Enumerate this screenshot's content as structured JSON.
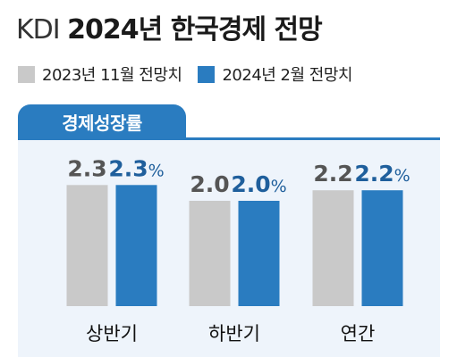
{
  "header": {
    "title_prefix": "KDI",
    "title_main": "2024년 한국경제 전망"
  },
  "legend": {
    "items": [
      {
        "label": "2023년 11월 전망치",
        "color": "#c9c9c9"
      },
      {
        "label": "2024년 2월 전망치",
        "color": "#2a7cc0"
      }
    ]
  },
  "tab_label": "경제성장률",
  "chart_data": {
    "type": "bar",
    "categories": [
      "상반기",
      "하반기",
      "연간"
    ],
    "series": [
      {
        "name": "2023년 11월 전망치",
        "values": [
          2.3,
          2.0,
          2.2
        ],
        "color": "#c9c9c9",
        "label_color": "#555555"
      },
      {
        "name": "2024년 2월 전망치",
        "values": [
          2.3,
          2.0,
          2.2
        ],
        "color": "#2a7cc0",
        "label_color": "#1f5f9c"
      }
    ],
    "value_labels": [
      [
        "2.3",
        "2.0",
        "2.2"
      ],
      [
        "2.3%",
        "2.0%",
        "2.2%"
      ]
    ],
    "title": "경제성장률"
  }
}
